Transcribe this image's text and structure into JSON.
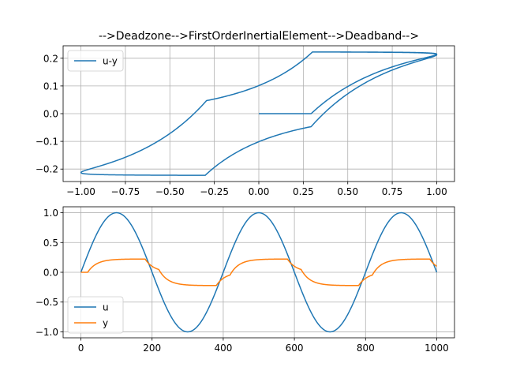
{
  "figure": {
    "title": "-->Deadzone-->FirstOrderInertialElement-->Deadband-->"
  },
  "colors": {
    "series_u": "#1f77b4",
    "series_y": "#ff7f0e",
    "grid": "#b0b0b0",
    "axes": "#000000"
  },
  "chart_data": [
    {
      "type": "line",
      "title": "-->Deadzone-->FirstOrderInertialElement-->Deadband-->",
      "xlabel": "",
      "ylabel": "",
      "xlim": [
        -1.1,
        1.1
      ],
      "ylim": [
        -0.245,
        0.245
      ],
      "xticks": [
        -1.0,
        -0.75,
        -0.5,
        -0.25,
        0.0,
        0.25,
        0.5,
        0.75,
        1.0
      ],
      "xtick_labels": [
        "−1.00",
        "−0.75",
        "−0.50",
        "−0.25",
        "0.00",
        "0.25",
        "0.50",
        "0.75",
        "1.00"
      ],
      "yticks": [
        -0.2,
        -0.1,
        0.0,
        0.1,
        0.2
      ],
      "ytick_labels": [
        "−0.2",
        "−0.1",
        "0.0",
        "0.1",
        "0.2"
      ],
      "grid": true,
      "legend_position": "upper-left",
      "series": [
        {
          "name": "u-y",
          "color": "#1f77b4",
          "model": {
            "kind": "parametric",
            "x": "u(t) = sin(2*pi*t/400)",
            "y": "y(t) = deadband(inertial(deadzone(u)))",
            "t_range": [
              0,
              1000
            ],
            "deadzone": 0.3,
            "time_constant": 25,
            "deadband_amplitude": 0.223,
            "saturation_level": 0.223
          }
        }
      ]
    },
    {
      "type": "line",
      "title": "",
      "xlabel": "",
      "ylabel": "",
      "xlim": [
        -50,
        1050
      ],
      "ylim": [
        -1.1,
        1.1
      ],
      "xticks": [
        0,
        200,
        400,
        600,
        800,
        1000
      ],
      "xtick_labels": [
        "0",
        "200",
        "400",
        "600",
        "800",
        "1000"
      ],
      "yticks": [
        -1.0,
        -0.5,
        0.0,
        0.5,
        1.0
      ],
      "ytick_labels": [
        "−1.0",
        "−0.5",
        "0.0",
        "0.5",
        "1.0"
      ],
      "grid": true,
      "legend_position": "lower-left",
      "series": [
        {
          "name": "u",
          "color": "#1f77b4",
          "model": {
            "kind": "sine",
            "amplitude": 1.0,
            "period": 400,
            "t_range": [
              0,
              1000
            ]
          }
        },
        {
          "name": "y",
          "color": "#ff7f0e",
          "model": {
            "kind": "deadzone-inertial-deadband",
            "t_range": [
              0,
              1000
            ],
            "deadzone": 0.3,
            "time_constant": 25,
            "deadband_amplitude": 0.223
          }
        }
      ]
    }
  ]
}
